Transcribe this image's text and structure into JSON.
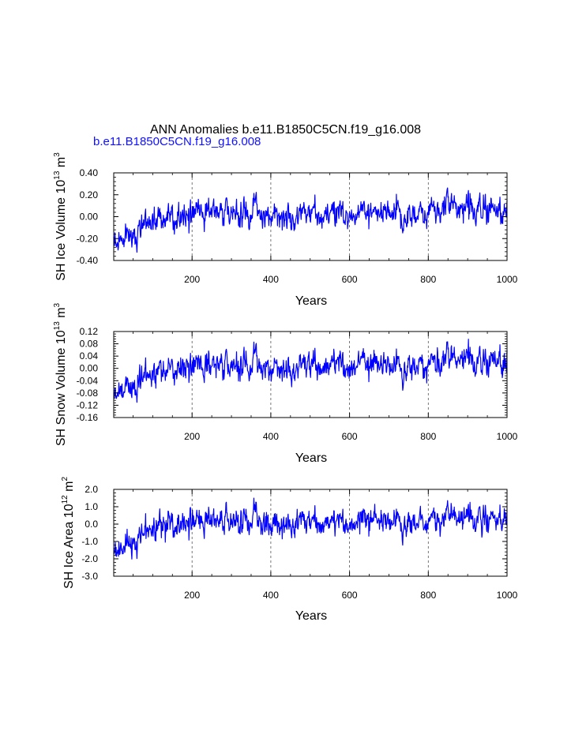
{
  "main_title": "ANN Anomalies b.e11.B1850C5CN.f19_g16.008",
  "case_label": "b.e11.B1850C5CN.f19_g16.008",
  "colors": {
    "series": "#0000ff",
    "case_label": "#1010ff",
    "axis": "#000000",
    "grid": "#555555"
  },
  "chart_data": [
    {
      "type": "line",
      "title": "",
      "ylabel_main": "SH Ice Volume 10",
      "ylabel_exp": "13",
      "ylabel_unit": " m",
      "ylabel_unit_exp": "3",
      "xlabel": "Years",
      "xlim": [
        1,
        1000
      ],
      "ylim": [
        -0.4,
        0.4
      ],
      "yticks": [
        -0.4,
        -0.2,
        0.0,
        0.2,
        0.4
      ],
      "ytick_labels": [
        "-0.40",
        "-0.20",
        "0.00",
        "0.20",
        "0.40"
      ],
      "xticks": [
        200,
        400,
        600,
        800,
        1000
      ],
      "xtick_labels": [
        "200",
        "400",
        "600",
        "800",
        "1000"
      ],
      "grid_x": [
        200,
        400,
        600,
        800
      ],
      "series": [
        {
          "name": "SH Ice Volume",
          "key": "volume"
        }
      ]
    },
    {
      "type": "line",
      "title": "",
      "ylabel_main": "SH Snow Volume 10",
      "ylabel_exp": "13",
      "ylabel_unit": " m",
      "ylabel_unit_exp": "3",
      "xlabel": "Years",
      "xlim": [
        1,
        1000
      ],
      "ylim": [
        -0.16,
        0.12
      ],
      "yticks": [
        -0.16,
        -0.12,
        -0.08,
        -0.04,
        0.0,
        0.04,
        0.08,
        0.12
      ],
      "ytick_labels": [
        "-0.16",
        "-0.12",
        "-0.08",
        "-0.04",
        "0.00",
        "0.04",
        "0.08",
        "0.12"
      ],
      "xticks": [
        200,
        400,
        600,
        800,
        1000
      ],
      "xtick_labels": [
        "200",
        "400",
        "600",
        "800",
        "1000"
      ],
      "grid_x": [
        200,
        400,
        600,
        800
      ],
      "series": [
        {
          "name": "SH Snow Volume",
          "key": "snow"
        }
      ]
    },
    {
      "type": "line",
      "title": "",
      "ylabel_main": "SH Ice Area 10",
      "ylabel_exp": "12",
      "ylabel_unit": " m",
      "ylabel_unit_exp": "2",
      "xlabel": "Years",
      "xlim": [
        1,
        1000
      ],
      "ylim": [
        -3.0,
        2.0
      ],
      "yticks": [
        -3.0,
        -2.0,
        -1.0,
        0.0,
        1.0,
        2.0
      ],
      "ytick_labels": [
        "-3.0",
        "-2.0",
        "-1.0",
        "0.0",
        "1.0",
        "2.0"
      ],
      "xticks": [
        200,
        400,
        600,
        800,
        1000
      ],
      "xtick_labels": [
        "200",
        "400",
        "600",
        "800",
        "1000"
      ],
      "grid_x": [
        200,
        400,
        600,
        800
      ],
      "series": [
        {
          "name": "SH Ice Area",
          "key": "area"
        }
      ]
    }
  ],
  "series_shape": {
    "n_years": 1000,
    "trend_points_year": [
      1,
      20,
      40,
      60,
      80,
      100,
      120,
      150,
      180,
      200,
      240,
      300,
      360,
      400,
      460,
      520,
      600,
      660,
      700,
      760,
      820,
      860,
      900,
      960,
      1000
    ],
    "volume_trend": [
      -0.22,
      -0.22,
      -0.18,
      -0.15,
      -0.08,
      -0.06,
      -0.02,
      0.0,
      -0.02,
      0.06,
      0.04,
      0.03,
      0.05,
      0.01,
      0.03,
      0.02,
      0.04,
      0.05,
      0.02,
      0.03,
      0.04,
      0.12,
      0.08,
      0.05,
      0.06
    ],
    "volume_noise": 0.07,
    "snow_trend": [
      -0.075,
      -0.075,
      -0.065,
      -0.05,
      -0.03,
      -0.02,
      -0.01,
      0.0,
      -0.005,
      0.02,
      0.01,
      0.01,
      0.02,
      0.0,
      0.01,
      0.01,
      0.015,
      0.02,
      0.005,
      0.01,
      0.015,
      0.04,
      0.03,
      0.015,
      0.02
    ],
    "snow_noise": 0.025,
    "area_trend": [
      -1.4,
      -1.4,
      -1.2,
      -0.9,
      -0.5,
      -0.3,
      -0.1,
      0.0,
      -0.1,
      0.35,
      0.2,
      0.15,
      0.3,
      0.0,
      0.15,
      0.1,
      0.2,
      0.3,
      0.1,
      0.15,
      0.2,
      0.55,
      0.4,
      0.2,
      0.3
    ],
    "area_noise": 0.4,
    "seed": 8
  }
}
